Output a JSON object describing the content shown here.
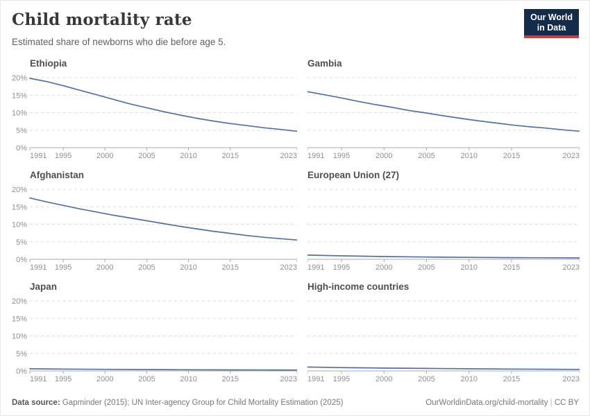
{
  "header": {
    "title": "Child mortality rate",
    "subtitle": "Estimated share of newborns who die before age 5."
  },
  "logo": {
    "line1": "Our World",
    "line2": "in Data"
  },
  "colors": {
    "line": "#4d72a8",
    "grid": "#dddddd",
    "axis": "#a9a9a9",
    "tick_label": "#8f8f8f",
    "facet_title": "#4e4e4e",
    "logo_bg": "#142c4c",
    "logo_red": "#d13a34"
  },
  "axes": {
    "x_range": [
      1991,
      2023
    ],
    "x_tick_labels": [
      "1991",
      "1995",
      "2000",
      "2005",
      "2010",
      "2015",
      "2023"
    ],
    "x_ticks": [
      1991,
      1995,
      2000,
      2005,
      2010,
      2015,
      2023
    ],
    "y_range": [
      0,
      20
    ],
    "y_ticks": [
      0,
      5,
      10,
      15,
      20
    ],
    "y_tick_labels": [
      "0%",
      "5%",
      "10%",
      "15%",
      "20%"
    ],
    "grid": "dashed",
    "y_labels_on_left_column_only": true
  },
  "chart_data": [
    {
      "type": "line",
      "title": "Ethiopia",
      "unit": "%",
      "show_y_labels": true,
      "x": [
        1991,
        1993,
        1995,
        1997,
        1999,
        2001,
        2003,
        2005,
        2007,
        2009,
        2011,
        2013,
        2015,
        2017,
        2019,
        2021,
        2023
      ],
      "values": [
        19.8,
        18.9,
        17.7,
        16.4,
        15.1,
        13.8,
        12.5,
        11.4,
        10.3,
        9.3,
        8.4,
        7.6,
        6.9,
        6.3,
        5.7,
        5.2,
        4.7
      ]
    },
    {
      "type": "line",
      "title": "Gambia",
      "unit": "%",
      "show_y_labels": false,
      "x": [
        1991,
        1993,
        1995,
        1997,
        1999,
        2001,
        2003,
        2005,
        2007,
        2009,
        2011,
        2013,
        2015,
        2017,
        2019,
        2021,
        2023
      ],
      "values": [
        16.0,
        15.1,
        14.2,
        13.2,
        12.3,
        11.5,
        10.6,
        9.9,
        9.1,
        8.4,
        7.7,
        7.1,
        6.5,
        6.0,
        5.6,
        5.1,
        4.7
      ]
    },
    {
      "type": "line",
      "title": "Afghanistan",
      "unit": "%",
      "show_y_labels": true,
      "x": [
        1991,
        1993,
        1995,
        1997,
        1999,
        2001,
        2003,
        2005,
        2007,
        2009,
        2011,
        2013,
        2015,
        2017,
        2019,
        2021,
        2023
      ],
      "values": [
        17.5,
        16.4,
        15.4,
        14.4,
        13.5,
        12.6,
        11.8,
        11.0,
        10.2,
        9.4,
        8.7,
        8.0,
        7.4,
        6.8,
        6.3,
        5.9,
        5.5
      ]
    },
    {
      "type": "line",
      "title": "European Union (27)",
      "unit": "%",
      "show_y_labels": false,
      "x": [
        1991,
        1995,
        2000,
        2005,
        2010,
        2015,
        2020,
        2023
      ],
      "values": [
        1.2,
        1.0,
        0.8,
        0.66,
        0.56,
        0.48,
        0.43,
        0.4
      ]
    },
    {
      "type": "line",
      "title": "Japan",
      "unit": "%",
      "show_y_labels": true,
      "x": [
        1991,
        1995,
        2000,
        2005,
        2010,
        2015,
        2020,
        2023
      ],
      "values": [
        0.62,
        0.54,
        0.46,
        0.39,
        0.34,
        0.3,
        0.27,
        0.25
      ]
    },
    {
      "type": "line",
      "title": "High-income countries",
      "unit": "%",
      "show_y_labels": false,
      "x": [
        1991,
        1995,
        2000,
        2005,
        2010,
        2015,
        2020,
        2023
      ],
      "values": [
        1.1,
        0.95,
        0.82,
        0.71,
        0.62,
        0.54,
        0.48,
        0.44
      ]
    }
  ],
  "footer": {
    "source_label": "Data source:",
    "source_text": " Gapminder (2015); UN Inter-agency Group for Child Mortality Estimation (2025)",
    "url": "OurWorldinData.org/child-mortality",
    "separator": " | ",
    "license": "CC BY"
  }
}
